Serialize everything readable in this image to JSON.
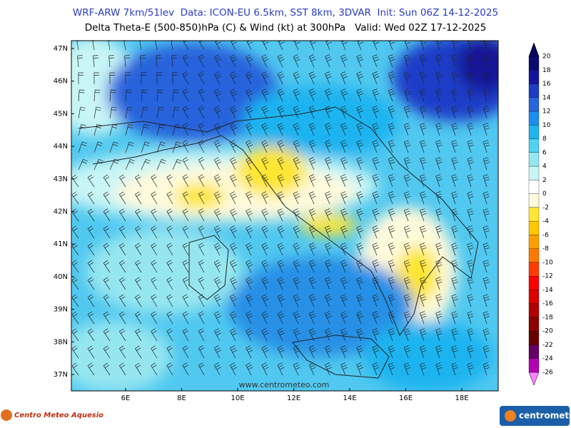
{
  "header": {
    "line1": "WRF-ARW 7km/51lev  Data: ICON-EU 6.5km, SST 8km, 3DVAR  Init: Sun 06Z 14-12-2025",
    "line2": "Delta Theta-E (500-850)hPa (C) & Wind (kt) at 300hPa   Valid: Wed 02Z 17-12-2025"
  },
  "map": {
    "lat_labels": [
      "47N",
      "46N",
      "45N",
      "44N",
      "43N",
      "42N",
      "41N",
      "40N",
      "39N",
      "38N",
      "37N"
    ],
    "lon_labels": [
      "6E",
      "8E",
      "10E",
      "12E",
      "14E",
      "16E",
      "18E"
    ],
    "watermark": "www.centrometeo.com"
  },
  "colorbar": {
    "labels": [
      "20",
      "18",
      "16",
      "14",
      "12",
      "10",
      "8",
      "6",
      "4",
      "2",
      "0",
      "-2",
      "-4",
      "-6",
      "-8",
      "-10",
      "-12",
      "-14",
      "-16",
      "-18",
      "-20",
      "-22",
      "-24",
      "-26"
    ],
    "colors": [
      "#0a0a5a",
      "#0a0a6e",
      "#1414a0",
      "#1e3cc8",
      "#2864dc",
      "#1e8cf0",
      "#1eb4f0",
      "#50d2f0",
      "#96e6f0",
      "#c8f5f5",
      "#ffffff",
      "#fffadc",
      "#ffe632",
      "#ffc800",
      "#ffa000",
      "#ff7800",
      "#ff3c00",
      "#ff0000",
      "#dc0000",
      "#b40000",
      "#8c0000",
      "#640000",
      "#640064",
      "#b400b4",
      "#ff80ff"
    ]
  },
  "footer": {
    "left_logo": "Centro Meteo Aquesio",
    "right_logo": "centrometeo"
  }
}
